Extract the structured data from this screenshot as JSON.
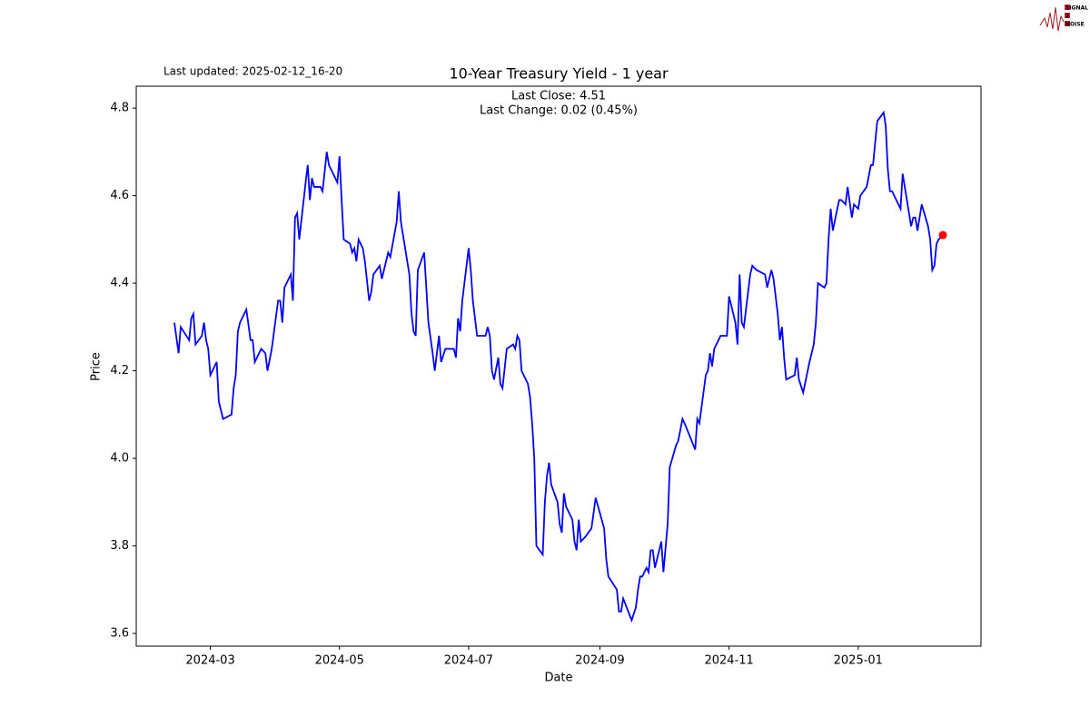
{
  "chart_data": {
    "type": "line",
    "title": "10-Year Treasury Yield - 1 year",
    "annotations": [
      "Last Close: 4.51",
      "Last Change: 0.02 (0.45%)"
    ],
    "last_updated": "Last updated: 2025-02-12_16-20",
    "logo": [
      "SIGNAL",
      "2",
      "NOISE"
    ],
    "x_label": "Date",
    "y_label": "Price",
    "color": "#0000ff",
    "last_point_color": "#ff0000",
    "xlim": [
      "2024-01-26",
      "2025-02-28"
    ],
    "xticks": [
      "2024-03",
      "2024-05",
      "2024-07",
      "2024-09",
      "2024-11",
      "2025-01"
    ],
    "ylim": [
      3.571,
      4.85
    ],
    "yticks": [
      3.6,
      3.8,
      {
        "value": 4,
        "label": "4.0"
      },
      4.2,
      4.4,
      4.6,
      4.8
    ],
    "x": [
      "2024-02-13",
      "2024-02-15",
      "2024-02-16",
      "2024-02-20",
      "2024-02-21",
      "2024-02-22",
      "2024-02-23",
      "2024-02-26",
      "2024-02-27",
      "2024-02-28",
      "2024-02-29",
      "2024-03-01",
      "2024-03-04",
      "2024-03-05",
      "2024-03-07",
      "2024-03-11",
      "2024-03-12",
      "2024-03-13",
      "2024-03-14",
      "2024-03-15",
      "2024-03-18",
      "2024-03-20",
      "2024-03-21",
      "2024-03-22",
      "2024-03-25",
      "2024-03-27",
      "2024-03-28",
      "2024-03-30",
      "2024-04-02",
      "2024-04-03",
      "2024-04-04",
      "2024-04-05",
      "2024-04-08",
      "2024-04-09",
      "2024-04-10",
      "2024-04-11",
      "2024-04-12",
      "2024-04-15",
      "2024-04-16",
      "2024-04-17",
      "2024-04-18",
      "2024-04-19",
      "2024-04-22",
      "2024-04-23",
      "2024-04-25",
      "2024-04-26",
      "2024-04-29",
      "2024-04-30",
      "2024-05-01",
      "2024-05-02",
      "2024-05-03",
      "2024-05-06",
      "2024-05-07",
      "2024-05-08",
      "2024-05-09",
      "2024-05-10",
      "2024-05-12",
      "2024-05-13",
      "2024-05-15",
      "2024-05-16",
      "2024-05-17",
      "2024-05-20",
      "2024-05-21",
      "2024-05-22",
      "2024-05-24",
      "2024-05-25",
      "2024-05-28",
      "2024-05-29",
      "2024-05-30",
      "2024-06-03",
      "2024-06-04",
      "2024-06-05",
      "2024-06-06",
      "2024-06-07",
      "2024-06-10",
      "2024-06-12",
      "2024-06-14",
      "2024-06-15",
      "2024-06-17",
      "2024-06-18",
      "2024-06-20",
      "2024-06-24",
      "2024-06-25",
      "2024-06-26",
      "2024-06-27",
      "2024-06-28",
      "2024-07-01",
      "2024-07-02",
      "2024-07-03",
      "2024-07-05",
      "2024-07-09",
      "2024-07-10",
      "2024-07-11",
      "2024-07-12",
      "2024-07-13",
      "2024-07-15",
      "2024-07-16",
      "2024-07-17",
      "2024-07-19",
      "2024-07-22",
      "2024-07-23",
      "2024-07-24",
      "2024-07-25",
      "2024-07-26",
      "2024-07-29",
      "2024-07-30",
      "2024-07-31",
      "2024-08-01",
      "2024-08-02",
      "2024-08-05",
      "2024-08-06",
      "2024-08-07",
      "2024-08-08",
      "2024-08-09",
      "2024-08-12",
      "2024-08-13",
      "2024-08-14",
      "2024-08-15",
      "2024-08-16",
      "2024-08-19",
      "2024-08-20",
      "2024-08-21",
      "2024-08-22",
      "2024-08-23",
      "2024-08-25",
      "2024-08-28",
      "2024-08-30",
      "2024-09-03",
      "2024-09-04",
      "2024-09-05",
      "2024-09-09",
      "2024-09-10",
      "2024-09-11",
      "2024-09-12",
      "2024-09-16",
      "2024-09-18",
      "2024-09-19",
      "2024-09-20",
      "2024-09-21",
      "2024-09-23",
      "2024-09-24",
      "2024-09-25",
      "2024-09-26",
      "2024-09-27",
      "2024-09-30",
      "2024-10-01",
      "2024-10-03",
      "2024-10-04",
      "2024-10-07",
      "2024-10-08",
      "2024-10-10",
      "2024-10-11",
      "2024-10-16",
      "2024-10-17",
      "2024-10-18",
      "2024-10-21",
      "2024-10-22",
      "2024-10-23",
      "2024-10-24",
      "2024-10-25",
      "2024-10-27",
      "2024-10-28",
      "2024-10-30",
      "2024-10-31",
      "2024-11-01",
      "2024-11-04",
      "2024-11-05",
      "2024-11-06",
      "2024-11-07",
      "2024-11-08",
      "2024-11-11",
      "2024-11-12",
      "2024-11-14",
      "2024-11-18",
      "2024-11-19",
      "2024-11-21",
      "2024-11-22",
      "2024-11-24",
      "2024-11-25",
      "2024-11-26",
      "2024-11-27",
      "2024-11-28",
      "2024-12-02",
      "2024-12-03",
      "2024-12-04",
      "2024-12-06",
      "2024-12-09",
      "2024-12-11",
      "2024-12-12",
      "2024-12-13",
      "2024-12-16",
      "2024-12-17",
      "2024-12-18",
      "2024-12-19",
      "2024-12-20",
      "2024-12-23",
      "2024-12-24",
      "2024-12-26",
      "2024-12-27",
      "2024-12-29",
      "2024-12-30",
      "2025-01-01",
      "2025-01-02",
      "2025-01-05",
      "2025-01-07",
      "2025-01-08",
      "2025-01-10",
      "2025-01-13",
      "2025-01-14",
      "2025-01-15",
      "2025-01-16",
      "2025-01-17",
      "2025-01-21",
      "2025-01-22",
      "2025-01-23",
      "2025-01-26",
      "2025-01-27",
      "2025-01-28",
      "2025-01-29",
      "2025-01-31",
      "2025-02-03",
      "2025-02-04",
      "2025-02-05",
      "2025-02-06",
      "2025-02-07",
      "2025-02-08",
      "2025-02-10"
    ],
    "values": [
      4.31,
      4.24,
      4.3,
      4.27,
      4.32,
      4.33,
      4.26,
      4.28,
      4.31,
      4.27,
      4.25,
      4.19,
      4.22,
      4.13,
      4.09,
      4.1,
      4.16,
      4.19,
      4.29,
      4.31,
      4.34,
      4.27,
      4.27,
      4.22,
      4.25,
      4.24,
      4.2,
      4.25,
      4.36,
      4.36,
      4.31,
      4.39,
      4.42,
      4.36,
      4.55,
      4.56,
      4.5,
      4.63,
      4.67,
      4.59,
      4.64,
      4.62,
      4.62,
      4.61,
      4.7,
      4.67,
      4.64,
      4.63,
      4.69,
      4.59,
      4.5,
      4.49,
      4.47,
      4.48,
      4.45,
      4.5,
      4.48,
      4.45,
      4.36,
      4.38,
      4.42,
      4.44,
      4.41,
      4.43,
      4.47,
      4.46,
      4.54,
      4.61,
      4.54,
      4.42,
      4.33,
      4.29,
      4.28,
      4.43,
      4.47,
      4.31,
      4.24,
      4.2,
      4.28,
      4.22,
      4.25,
      4.25,
      4.23,
      4.32,
      4.29,
      4.36,
      4.48,
      4.43,
      4.36,
      4.28,
      4.28,
      4.3,
      4.28,
      4.2,
      4.18,
      4.23,
      4.17,
      4.16,
      4.25,
      4.26,
      4.25,
      4.28,
      4.27,
      4.2,
      4.17,
      4.14,
      4.08,
      4.0,
      3.8,
      3.78,
      3.9,
      3.96,
      3.99,
      3.94,
      3.9,
      3.85,
      3.83,
      3.92,
      3.89,
      3.86,
      3.81,
      3.79,
      3.86,
      3.81,
      3.82,
      3.84,
      3.91,
      3.84,
      3.77,
      3.73,
      3.7,
      3.65,
      3.65,
      3.68,
      3.63,
      3.66,
      3.7,
      3.73,
      3.73,
      3.75,
      3.74,
      3.79,
      3.79,
      3.75,
      3.81,
      3.74,
      3.85,
      3.98,
      4.03,
      4.04,
      4.09,
      4.08,
      4.02,
      4.09,
      4.08,
      4.19,
      4.2,
      4.24,
      4.21,
      4.25,
      4.27,
      4.28,
      4.28,
      4.28,
      4.37,
      4.31,
      4.26,
      4.42,
      4.31,
      4.3,
      4.42,
      4.44,
      4.43,
      4.42,
      4.39,
      4.43,
      4.41,
      4.33,
      4.27,
      4.3,
      4.23,
      4.18,
      4.19,
      4.23,
      4.18,
      4.15,
      4.22,
      4.26,
      4.31,
      4.4,
      4.39,
      4.4,
      4.5,
      4.57,
      4.52,
      4.59,
      4.59,
      4.58,
      4.62,
      4.55,
      4.58,
      4.57,
      4.6,
      4.62,
      4.67,
      4.67,
      4.77,
      4.79,
      4.76,
      4.66,
      4.61,
      4.61,
      4.57,
      4.65,
      4.62,
      4.53,
      4.55,
      4.55,
      4.52,
      4.58,
      4.53,
      4.5,
      4.43,
      4.44,
      4.49,
      4.5,
      4.51
    ]
  }
}
